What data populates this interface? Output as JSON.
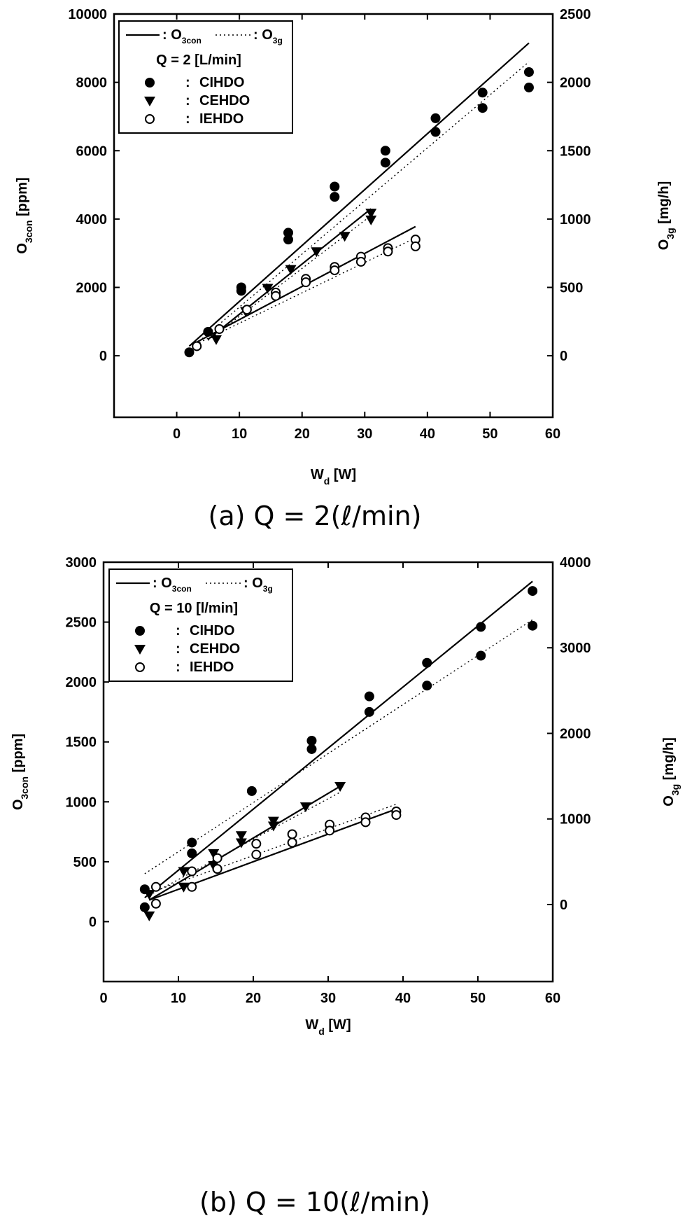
{
  "charts": [
    {
      "chart_data": {
        "type": "scatter",
        "caption": "(a)  Q  =  2(ℓ/min)",
        "xlabel": {
          "main": "W",
          "sub": "d",
          "unit": " [W]"
        },
        "ylabel_left": {
          "main": "O",
          "sub": "3con",
          "unit": " [ppm]"
        },
        "ylabel_right": {
          "main": "O",
          "sub": "3g",
          "unit": " [mg/h]"
        },
        "xlim": [
          -10,
          60
        ],
        "ylim_left": [
          -1800,
          10000
        ],
        "ylim_right": [
          -450,
          2500
        ],
        "xticks": [
          0,
          10,
          20,
          30,
          40,
          50,
          60
        ],
        "yticks_left": [
          0,
          2000,
          4000,
          6000,
          8000,
          10000
        ],
        "yticks_right": [
          0,
          500,
          1000,
          1500,
          2000,
          2500
        ],
        "legend": {
          "position": "top-left",
          "solid_label": "O3con",
          "dotted_label": "O3g",
          "condition": "Q = 2 [L/min]",
          "entries": [
            "CIHDO",
            "CEHDO",
            "IEHDO"
          ]
        },
        "series": [
          {
            "name": "CIHDO",
            "marker": "filled-circle",
            "x": [
              2,
              5,
              10.3,
              10.3,
              17.8,
              17.8,
              25.2,
              25.2,
              33.3,
              33.3,
              41.3,
              41.3,
              48.8,
              48.8,
              56.2,
              56.2
            ],
            "y": [
              100,
              700,
              2000,
              1900,
              3600,
              3400,
              4950,
              4650,
              6000,
              5650,
              6950,
              6550,
              7700,
              7250,
              8300,
              7850
            ]
          },
          {
            "name": "CEHDO",
            "marker": "filled-triangle-down",
            "x": [
              6.3,
              11,
              14.5,
              18.2,
              22.3,
              26.8,
              31,
              31
            ],
            "y": [
              480,
              1300,
              1980,
              2530,
              3050,
              3500,
              4180,
              3980
            ]
          },
          {
            "name": "IEHDO",
            "marker": "open-circle",
            "x": [
              3.2,
              6.8,
              11.2,
              15.8,
              15.8,
              20.6,
              20.6,
              25.2,
              25.2,
              29.4,
              29.4,
              33.7,
              33.7,
              38.1,
              38.1
            ],
            "y": [
              280,
              780,
              1350,
              1850,
              1750,
              2250,
              2150,
              2600,
              2500,
              2900,
              2750,
              3150,
              3050,
              3400,
              3200
            ]
          }
        ],
        "fit_lines": [
          {
            "name": "CIHDO O3con",
            "style": "solid",
            "x": [
              2,
              56.2
            ],
            "y": [
              280,
              9150
            ]
          },
          {
            "name": "CIHDO O3g",
            "style": "dotted",
            "x": [
              2,
              56.2
            ],
            "y": [
              180,
              8600
            ]
          },
          {
            "name": "CEHDO O3con",
            "style": "solid",
            "x": [
              5,
              31
            ],
            "y": [
              480,
              4300
            ]
          },
          {
            "name": "CEHDO O3g",
            "style": "dotted",
            "x": [
              5,
              31
            ],
            "y": [
              450,
              4100
            ]
          },
          {
            "name": "IEHDO O3con",
            "style": "solid",
            "x": [
              3,
              38.1
            ],
            "y": [
              380,
              3780
            ]
          },
          {
            "name": "IEHDO O3g",
            "style": "dotted",
            "x": [
              3,
              38.1
            ],
            "y": [
              330,
              3450
            ]
          }
        ]
      }
    },
    {
      "chart_data": {
        "type": "scatter",
        "caption": "(b)  Q  =  10(ℓ/min)",
        "xlabel": {
          "main": "W",
          "sub": "d",
          "unit": " [W]"
        },
        "ylabel_left": {
          "main": "O",
          "sub": "3con",
          "unit": " [ppm]"
        },
        "ylabel_right": {
          "main": "O",
          "sub": "3g",
          "unit": " [mg/h]"
        },
        "xlim": [
          0,
          60
        ],
        "ylim_left": [
          -500,
          3000
        ],
        "ylim_right": [
          -900,
          4000
        ],
        "xticks": [
          0,
          10,
          20,
          30,
          40,
          50,
          60
        ],
        "yticks_left": [
          0,
          500,
          1000,
          1500,
          2000,
          2500,
          3000
        ],
        "yticks_right": [
          0,
          1000,
          2000,
          3000,
          4000
        ],
        "legend": {
          "position": "top-left",
          "solid_label": "O3con",
          "dotted_label": "O3g",
          "condition": "Q = 10 [l/min]",
          "entries": [
            "CIHDO",
            "CEHDO",
            "IEHDO"
          ]
        },
        "series": [
          {
            "name": "CIHDO",
            "marker": "filled-circle",
            "x": [
              5.5,
              5.5,
              11.8,
              11.8,
              19.8,
              27.8,
              27.8,
              35.5,
              35.5,
              43.2,
              43.2,
              50.4,
              50.4,
              57.3,
              57.3
            ],
            "y": [
              270,
              120,
              660,
              570,
              1090,
              1510,
              1440,
              1880,
              1750,
              2160,
              1970,
              2460,
              2220,
              2760,
              2470
            ]
          },
          {
            "name": "CEHDO",
            "marker": "filled-triangle-down",
            "x": [
              6.1,
              6.1,
              10.7,
              10.7,
              14.7,
              14.7,
              18.4,
              18.4,
              22.7,
              22.7,
              27,
              31.6
            ],
            "y": [
              230,
              50,
              420,
              290,
              570,
              470,
              720,
              660,
              840,
              800,
              960,
              1130
            ]
          },
          {
            "name": "IEHDO",
            "marker": "open-circle",
            "x": [
              7,
              7,
              11.8,
              11.8,
              15.2,
              15.2,
              20.4,
              20.4,
              25.2,
              25.2,
              30.2,
              30.2,
              35,
              35,
              39.1,
              39.1
            ],
            "y": [
              290,
              150,
              420,
              290,
              530,
              440,
              650,
              560,
              730,
              660,
              810,
              760,
              870,
              830,
              920,
              890
            ]
          }
        ],
        "fit_lines": [
          {
            "name": "CIHDO O3con",
            "style": "solid",
            "x": [
              5.5,
              57.3
            ],
            "y": [
              200,
              2840
            ]
          },
          {
            "name": "CIHDO O3g",
            "style": "dotted",
            "x": [
              5.5,
              57.3
            ],
            "y": [
              400,
              2520
            ]
          },
          {
            "name": "CEHDO O3con",
            "style": "solid",
            "x": [
              6.1,
              31.6
            ],
            "y": [
              180,
              1130
            ]
          },
          {
            "name": "CEHDO O3g",
            "style": "dotted",
            "x": [
              6.1,
              31.6
            ],
            "y": [
              220,
              1080
            ]
          },
          {
            "name": "IEHDO O3con",
            "style": "solid",
            "x": [
              6.1,
              39.1
            ],
            "y": [
              180,
              940
            ]
          },
          {
            "name": "IEHDO O3g",
            "style": "dotted",
            "x": [
              6.1,
              39.1
            ],
            "y": [
              240,
              980
            ]
          }
        ]
      }
    }
  ]
}
